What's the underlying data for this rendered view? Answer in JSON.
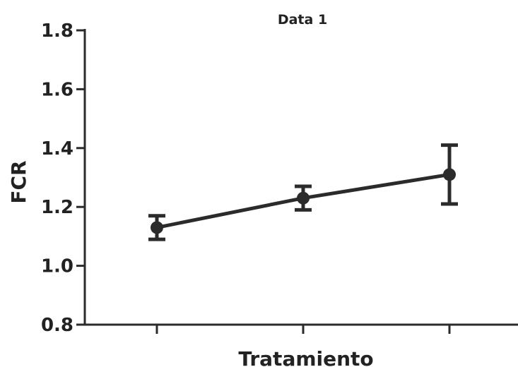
{
  "chart_data": {
    "type": "line",
    "title": "Data 1",
    "xlabel": "Tratamiento",
    "ylabel": "FCR",
    "categories": [
      "",
      "",
      ""
    ],
    "ylim": [
      0.8,
      1.8
    ],
    "yticks": [
      "0.8",
      "1.0",
      "1.2",
      "1.4",
      "1.6",
      "1.8"
    ],
    "series": [
      {
        "values": [
          1.13,
          1.23,
          1.31
        ],
        "error": [
          0.04,
          0.04,
          0.1
        ]
      }
    ],
    "grid": false,
    "legend": "none",
    "colors": {
      "line": "#2b2b2b",
      "text": "#222222"
    }
  }
}
